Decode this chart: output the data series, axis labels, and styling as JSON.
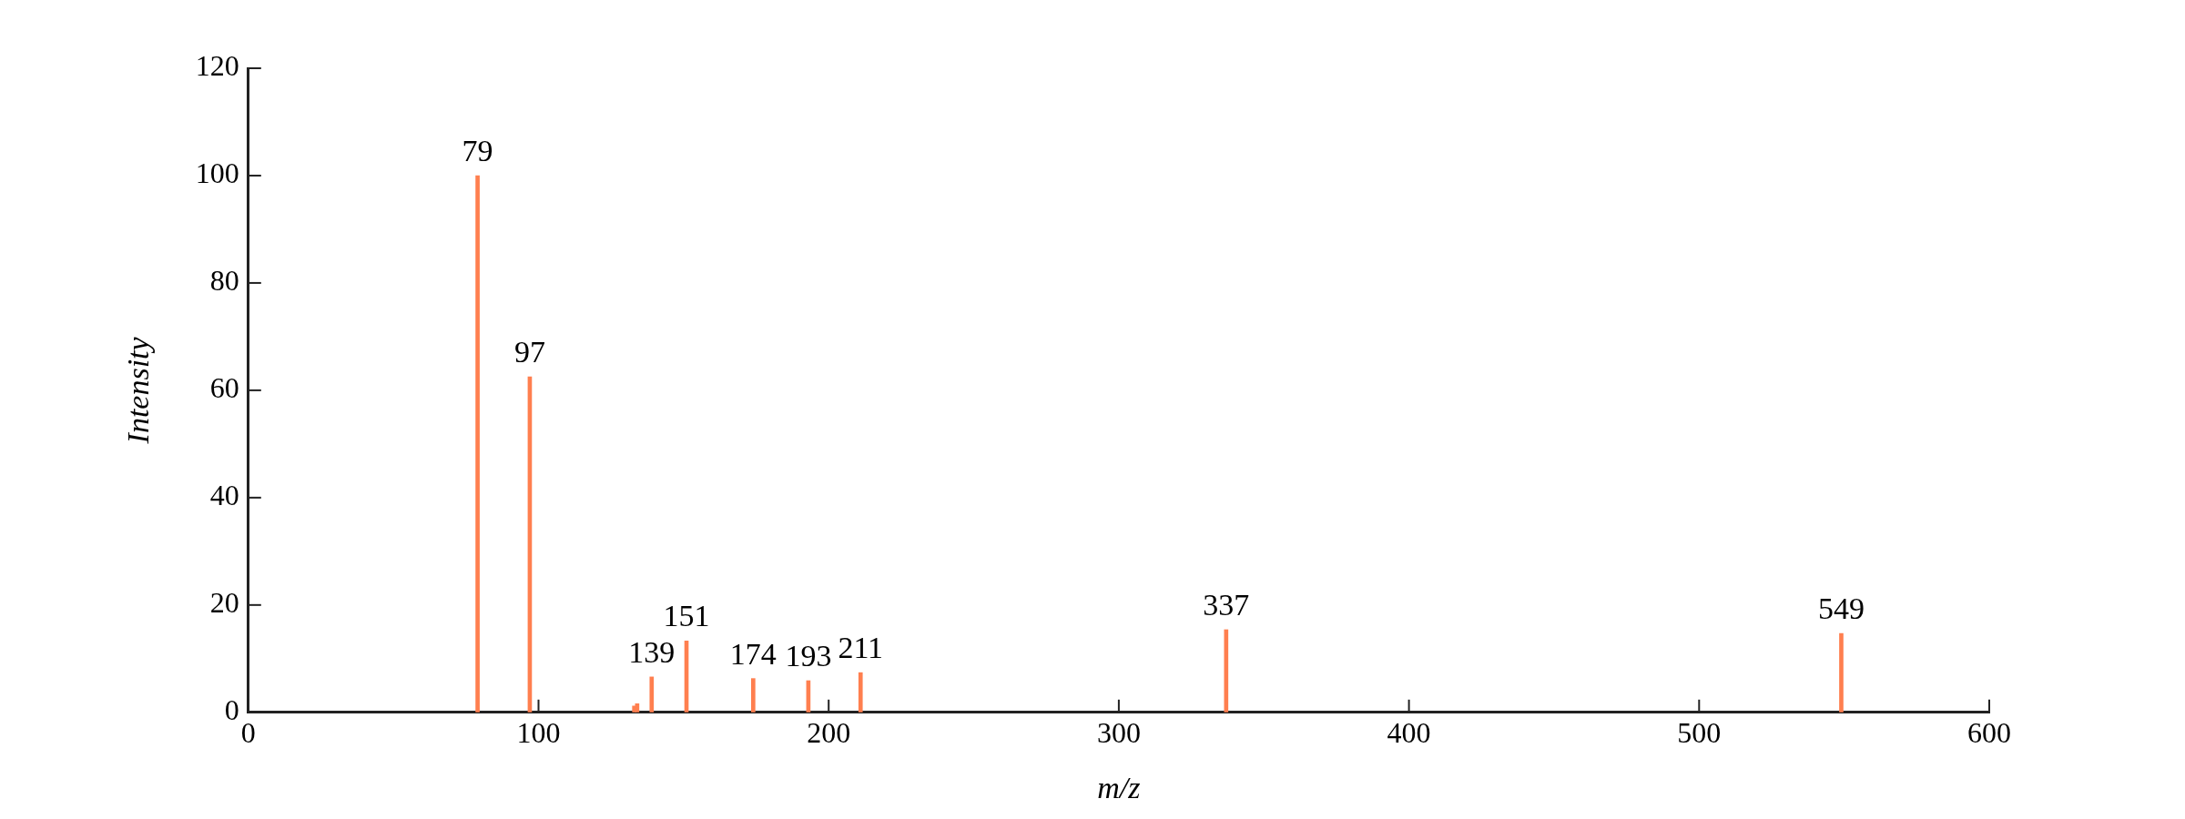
{
  "chart_data": {
    "type": "bar",
    "xlabel": "m/z",
    "ylabel": "Intensity",
    "x": [
      79,
      97,
      133,
      134,
      139,
      151,
      174,
      193,
      211,
      337,
      549
    ],
    "values": [
      100,
      62.5,
      1.2,
      1.6,
      6.6,
      13.3,
      6.3,
      5.9,
      7.4,
      15.4,
      14.7
    ],
    "color": "#ff7f4f",
    "xlim": [
      0,
      600
    ],
    "xticks": [
      0,
      100,
      200,
      300,
      400,
      500,
      600
    ],
    "ylim": [
      0,
      120
    ],
    "yticks": [
      0,
      20,
      40,
      60,
      80,
      100,
      120
    ],
    "grid": false,
    "legend": false,
    "annotations": [
      {
        "text": "79",
        "x": 79,
        "y": 100
      },
      {
        "text": "97",
        "x": 97,
        "y": 62.5
      },
      {
        "text": "139",
        "x": 139,
        "y": 6.6
      },
      {
        "text": "151",
        "x": 151,
        "y": 13.3
      },
      {
        "text": "174",
        "x": 174,
        "y": 6.3
      },
      {
        "text": "193",
        "x": 193,
        "y": 5.9
      },
      {
        "text": "211",
        "x": 211,
        "y": 7.4
      },
      {
        "text": "337",
        "x": 337,
        "y": 15.4
      },
      {
        "text": "549",
        "x": 549,
        "y": 14.7
      }
    ]
  }
}
